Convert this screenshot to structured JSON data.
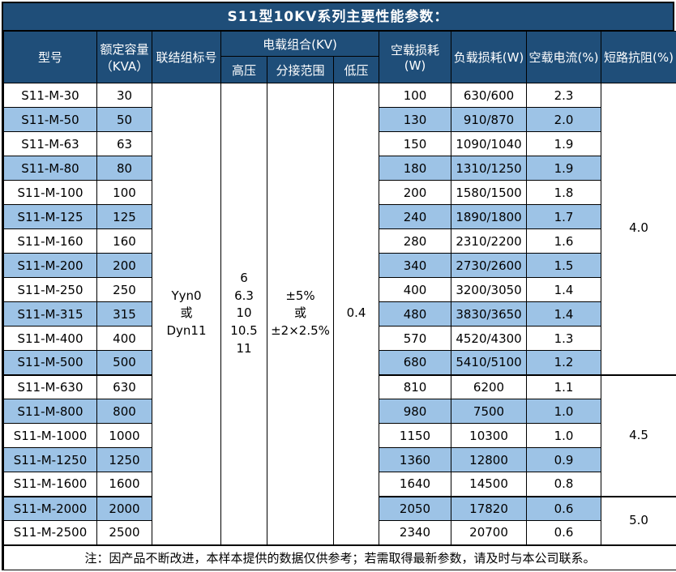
{
  "title": "S11型10KV系列主要性能参数：",
  "header": {
    "model": "型号",
    "capacity_line1": "额定容量",
    "capacity_line2": "（KVA）",
    "connection": "联结组标号",
    "voltage_group": "电载组合(KV)",
    "hv": "高压",
    "tap": "分接范围",
    "lv": "低压",
    "no_load_loss": "空载损耗(W)",
    "load_loss": "负载损耗(W)",
    "no_load_current": "空载电流(%)",
    "impedance": "短路抗阻(%)"
  },
  "merged": {
    "connection_lines": [
      "Yyn0",
      "或",
      "Dyn11"
    ],
    "hv_lines": [
      "6",
      "6.3",
      "10",
      "10.5",
      "11"
    ],
    "tap_lines": [
      "±5%",
      "或",
      "±2×2.5%"
    ],
    "lv": "0.4"
  },
  "rows": [
    {
      "model": "S11-M-30",
      "capacity": "30",
      "no_load_loss": "100",
      "load_loss": "630/600",
      "no_load_current": "2.3"
    },
    {
      "model": "S11-M-50",
      "capacity": "50",
      "no_load_loss": "130",
      "load_loss": "910/870",
      "no_load_current": "2.0"
    },
    {
      "model": "S11-M-63",
      "capacity": "63",
      "no_load_loss": "150",
      "load_loss": "1090/1040",
      "no_load_current": "1.9"
    },
    {
      "model": "S11-M-80",
      "capacity": "80",
      "no_load_loss": "180",
      "load_loss": "1310/1250",
      "no_load_current": "1.9"
    },
    {
      "model": "S11-M-100",
      "capacity": "100",
      "no_load_loss": "200",
      "load_loss": "1580/1500",
      "no_load_current": "1.8"
    },
    {
      "model": "S11-M-125",
      "capacity": "125",
      "no_load_loss": "240",
      "load_loss": "1890/1800",
      "no_load_current": "1.7"
    },
    {
      "model": "S11-M-160",
      "capacity": "160",
      "no_load_loss": "280",
      "load_loss": "2310/2200",
      "no_load_current": "1.6"
    },
    {
      "model": "S11-M-200",
      "capacity": "200",
      "no_load_loss": "340",
      "load_loss": "2730/2600",
      "no_load_current": "1.5"
    },
    {
      "model": "S11-M-250",
      "capacity": "250",
      "no_load_loss": "400",
      "load_loss": "3200/3050",
      "no_load_current": "1.4"
    },
    {
      "model": "S11-M-315",
      "capacity": "315",
      "no_load_loss": "480",
      "load_loss": "3830/3650",
      "no_load_current": "1.4"
    },
    {
      "model": "S11-M-400",
      "capacity": "400",
      "no_load_loss": "570",
      "load_loss": "4520/4300",
      "no_load_current": "1.3"
    },
    {
      "model": "S11-M-500",
      "capacity": "500",
      "no_load_loss": "680",
      "load_loss": "5410/5100",
      "no_load_current": "1.2"
    },
    {
      "model": "S11-M-630",
      "capacity": "630",
      "no_load_loss": "810",
      "load_loss": "6200",
      "no_load_current": "1.1"
    },
    {
      "model": "S11-M-800",
      "capacity": "800",
      "no_load_loss": "980",
      "load_loss": "7500",
      "no_load_current": "1.0"
    },
    {
      "model": "S11-M-1000",
      "capacity": "1000",
      "no_load_loss": "1150",
      "load_loss": "10300",
      "no_load_current": "1.0"
    },
    {
      "model": "S11-M-1250",
      "capacity": "1250",
      "no_load_loss": "1360",
      "load_loss": "12800",
      "no_load_current": "0.9"
    },
    {
      "model": "S11-M-1600",
      "capacity": "1600",
      "no_load_loss": "1640",
      "load_loss": "14500",
      "no_load_current": "0.8"
    },
    {
      "model": "S11-M-2000",
      "capacity": "2000",
      "no_load_loss": "2050",
      "load_loss": "17820",
      "no_load_current": "0.6"
    },
    {
      "model": "S11-M-2500",
      "capacity": "2500",
      "no_load_loss": "2340",
      "load_loss": "20700",
      "no_load_current": "0.6"
    }
  ],
  "impedance_groups": [
    {
      "value": "4.0",
      "span": 12
    },
    {
      "value": "4.5",
      "span": 5
    },
    {
      "value": "5.0",
      "span": 2
    }
  ],
  "note": "注：因产品不断改进，本样本提供的数据仅供参考；若需取得最新参数，请及时与本公司联系。",
  "colors": {
    "header_bg": "#1F4E79",
    "alt_row_bg": "#9DC3E6",
    "border": "#000000",
    "header_text": "#FFFFFF",
    "body_text": "#000000"
  }
}
